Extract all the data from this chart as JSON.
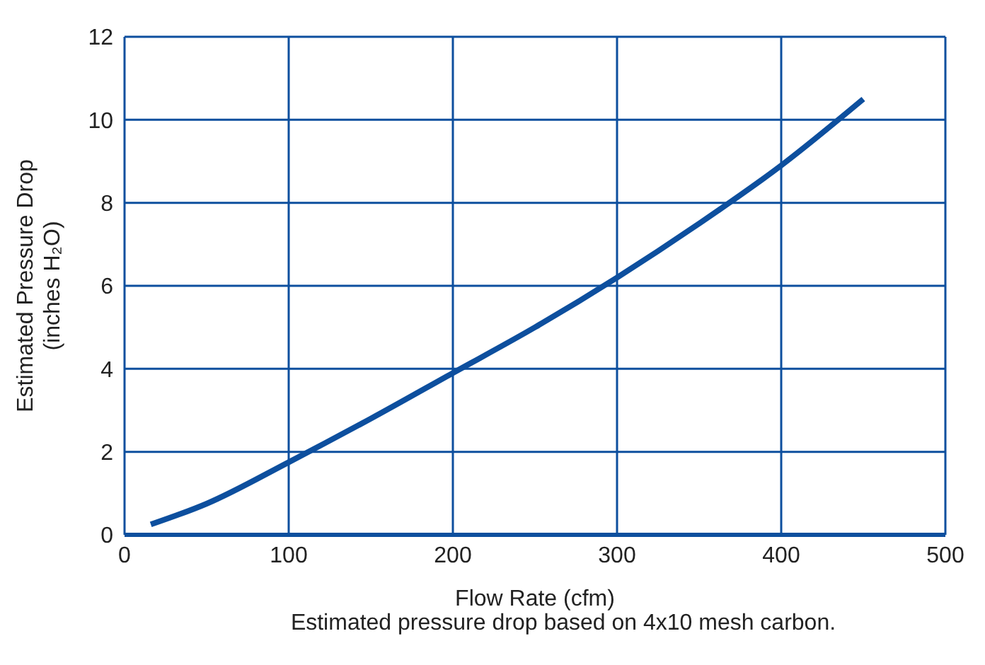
{
  "chart_data": {
    "type": "line",
    "xlabel": "Flow Rate (cfm)",
    "ylabel": "Estimated Pressure Drop\n(inches H₂O)",
    "annotations": [
      "Estimated pressure drop based on 4x10 mesh carbon."
    ],
    "x": [
      16,
      50,
      100,
      150,
      200,
      250,
      300,
      350,
      400,
      450
    ],
    "series": [
      {
        "color": "#0d4f9e",
        "values": [
          0.25,
          0.75,
          1.75,
          2.8,
          3.9,
          5.0,
          6.2,
          7.5,
          8.9,
          10.5
        ]
      }
    ],
    "xlim": [
      0,
      500
    ],
    "xticks": [
      0,
      100,
      200,
      300,
      400,
      500
    ],
    "ylim": [
      0,
      12
    ],
    "yticks": [
      0,
      2,
      4,
      6,
      8,
      10,
      12
    ],
    "grid": true,
    "marker": "none",
    "line_style": "solid"
  }
}
